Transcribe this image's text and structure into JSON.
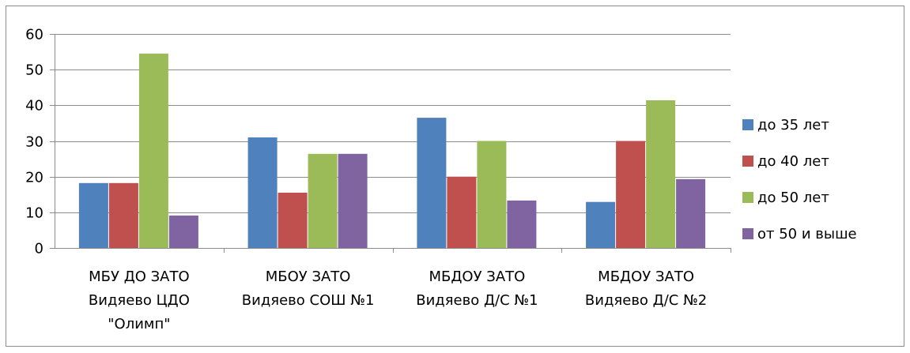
{
  "chart_data": {
    "type": "bar",
    "categories": [
      [
        "МБУ ДО ЗАТО",
        "Видяево ЦДО",
        "\"Олимп\""
      ],
      [
        "МБОУ ЗАТО",
        "Видяево СОШ №1"
      ],
      [
        "МБДОУ ЗАТО",
        "Видяево Д/С №1"
      ],
      [
        "МБДОУ ЗАТО",
        "Видяево Д/С №2"
      ]
    ],
    "series": [
      {
        "name": "до 35 лет",
        "color": "#4F81BD",
        "values": [
          18.2,
          31.0,
          36.5,
          12.9
        ]
      },
      {
        "name": "до 40 лет",
        "color": "#C0504D",
        "values": [
          18.2,
          15.5,
          20.0,
          30.0
        ]
      },
      {
        "name": "до 50 лет",
        "color": "#9BBB59",
        "values": [
          54.5,
          26.4,
          30.0,
          41.4
        ]
      },
      {
        "name": "от 50 и выше",
        "color": "#8064A2",
        "values": [
          9.1,
          26.4,
          13.3,
          19.3
        ]
      }
    ],
    "ylim": [
      0,
      60
    ],
    "yticks": [
      0,
      10,
      20,
      30,
      40,
      50,
      60
    ],
    "grid": true,
    "legend": "right",
    "title": "",
    "xlabel": "",
    "ylabel": ""
  }
}
